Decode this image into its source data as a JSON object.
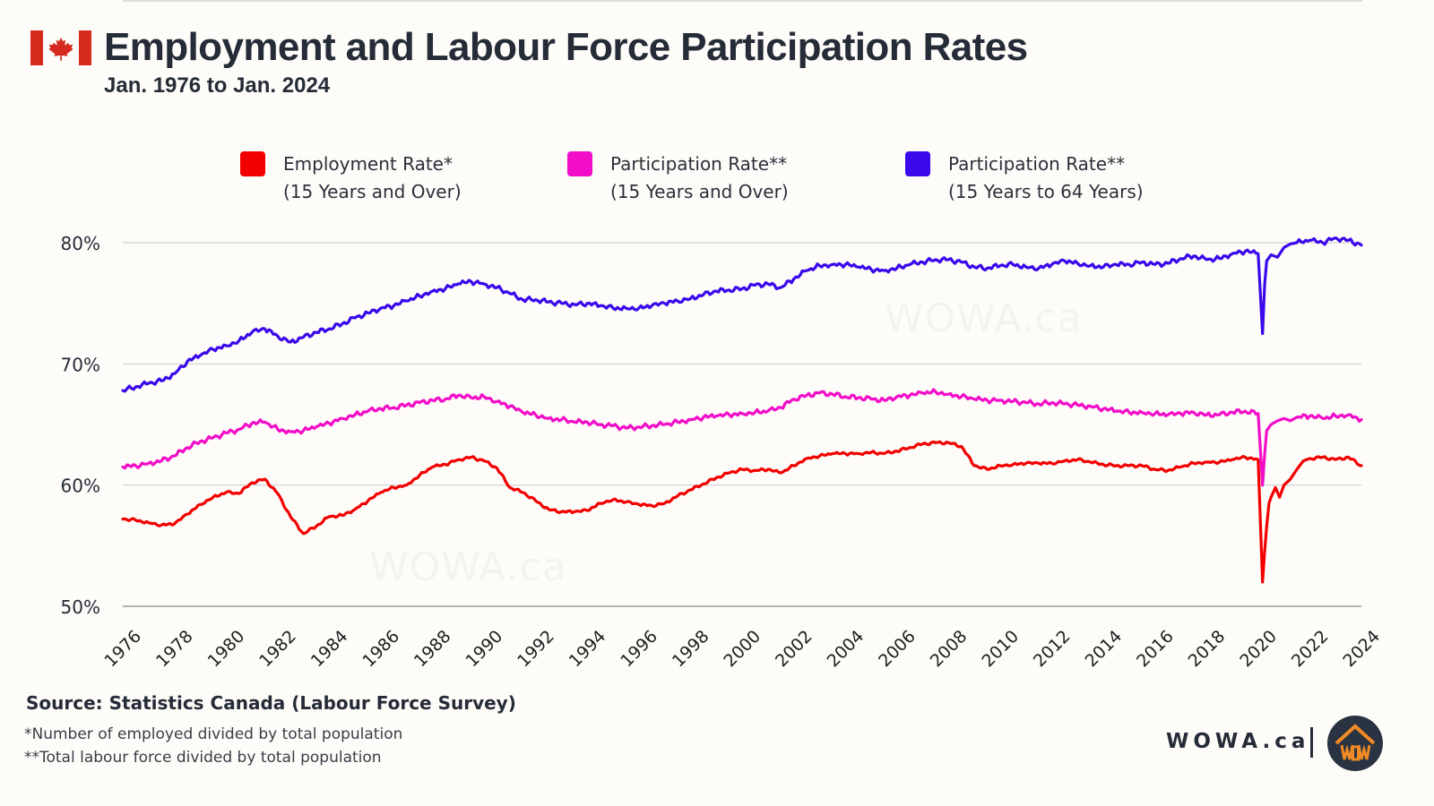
{
  "header": {
    "title": "Employment and Labour Force Participation Rates",
    "subtitle": "Jan. 1976 to Jan. 2024",
    "flag_icon": "canada-flag-icon"
  },
  "legend": [
    {
      "line1": "Employment Rate*",
      "line2": "(15 Years and Over)",
      "color": "#f20000"
    },
    {
      "line1": "Participation Rate**",
      "line2": "(15 Years and Over)",
      "color": "#f20dc8"
    },
    {
      "line1": "Participation Rate**",
      "line2": "(15 Years to 64 Years)",
      "color": "#3a08ea"
    }
  ],
  "watermark": "WOWA.ca",
  "footer": {
    "source": "Source: Statistics Canada (Labour Force Survey)",
    "note1": "*Number of employed divided by total population",
    "note2": "**Total labour force divided by total population",
    "brand": "WOWA.ca",
    "logo_icon": "wowa-house-logo-icon"
  },
  "chart_data": {
    "type": "line",
    "title": "Employment and Labour Force Participation Rates",
    "subtitle": "Jan. 1976 to Jan. 2024",
    "xlabel": "",
    "ylabel": "",
    "xlim": [
      1976,
      2024
    ],
    "ylim": [
      50,
      80
    ],
    "y_ticks": [
      50,
      60,
      70,
      80
    ],
    "y_tick_labels": [
      "50%",
      "60%",
      "70%",
      "80%"
    ],
    "x_ticks": [
      1976,
      1978,
      1980,
      1982,
      1984,
      1986,
      1988,
      1990,
      1992,
      1994,
      1996,
      1998,
      2000,
      2002,
      2004,
      2006,
      2008,
      2010,
      2012,
      2014,
      2016,
      2018,
      2020,
      2022,
      2024
    ],
    "x_tick_labels": [
      "1976",
      "1978",
      "1980",
      "1982",
      "1984",
      "1986",
      "1988",
      "1990",
      "1992",
      "1994",
      "1996",
      "1998",
      "2000",
      "2002",
      "2004",
      "2006",
      "2008",
      "2010",
      "2012",
      "2014",
      "2016",
      "2018",
      "2020",
      "2022",
      "2024"
    ],
    "grid": "horizontal",
    "legend_position": "top",
    "series": [
      {
        "name": "Employment Rate* (15 Years and Over)",
        "color": "#f20000",
        "x": [
          1976,
          1976.5,
          1977,
          1977.5,
          1978,
          1978.5,
          1979,
          1979.5,
          1980,
          1980.5,
          1981,
          1981.5,
          1982,
          1982.5,
          1983,
          1983.5,
          1984,
          1984.5,
          1985,
          1985.5,
          1986,
          1986.5,
          1987,
          1987.5,
          1988,
          1988.5,
          1989,
          1989.5,
          1990,
          1990.5,
          1991,
          1991.5,
          1992,
          1992.5,
          1993,
          1993.5,
          1994,
          1994.5,
          1995,
          1995.5,
          1996,
          1996.5,
          1997,
          1997.5,
          1998,
          1998.5,
          1999,
          1999.5,
          2000,
          2000.5,
          2001,
          2001.5,
          2002,
          2002.5,
          2003,
          2003.5,
          2004,
          2004.5,
          2005,
          2005.5,
          2006,
          2006.5,
          2007,
          2007.5,
          2008,
          2008.5,
          2009,
          2009.5,
          2010,
          2010.5,
          2011,
          2011.5,
          2012,
          2012.5,
          2013,
          2013.5,
          2014,
          2014.5,
          2015,
          2015.5,
          2016,
          2016.5,
          2017,
          2017.5,
          2018,
          2018.5,
          2019,
          2019.5,
          2020,
          2020.17,
          2020.25,
          2020.33,
          2020.42,
          2020.5,
          2020.67,
          2020.83,
          2021,
          2021.25,
          2021.5,
          2021.75,
          2022,
          2022.5,
          2023,
          2023.5,
          2024
        ],
        "values": [
          57.2,
          57.1,
          56.9,
          56.7,
          56.8,
          57.6,
          58.4,
          59.0,
          59.4,
          59.3,
          60.2,
          60.5,
          59.3,
          57.4,
          56.0,
          56.6,
          57.4,
          57.5,
          58.0,
          58.7,
          59.4,
          59.8,
          60.0,
          60.8,
          61.5,
          61.7,
          62.1,
          62.3,
          62.0,
          61.4,
          59.8,
          59.4,
          58.7,
          58.0,
          57.8,
          57.8,
          57.9,
          58.5,
          58.8,
          58.6,
          58.4,
          58.3,
          58.5,
          59.1,
          59.6,
          60.1,
          60.6,
          61.0,
          61.3,
          61.2,
          61.3,
          61.0,
          61.6,
          62.2,
          62.4,
          62.6,
          62.6,
          62.6,
          62.7,
          62.6,
          62.8,
          63.1,
          63.4,
          63.5,
          63.5,
          63.2,
          61.6,
          61.3,
          61.6,
          61.7,
          61.8,
          61.8,
          61.8,
          62.0,
          62.1,
          61.9,
          61.7,
          61.6,
          61.6,
          61.6,
          61.3,
          61.2,
          61.5,
          61.8,
          61.9,
          61.9,
          62.1,
          62.3,
          62.1,
          52.0,
          54.5,
          56.6,
          58.5,
          59.0,
          59.8,
          59.0,
          60.0,
          60.5,
          61.3,
          62.0,
          62.2,
          62.3,
          62.1,
          62.3,
          61.6
        ]
      },
      {
        "name": "Participation Rate** (15 Years and Over)",
        "color": "#f20dc8",
        "x": [
          1976,
          1976.5,
          1977,
          1977.5,
          1978,
          1978.5,
          1979,
          1979.5,
          1980,
          1980.5,
          1981,
          1981.5,
          1982,
          1982.5,
          1983,
          1983.5,
          1984,
          1984.5,
          1985,
          1985.5,
          1986,
          1986.5,
          1987,
          1987.5,
          1988,
          1988.5,
          1989,
          1989.5,
          1990,
          1990.5,
          1991,
          1991.5,
          1992,
          1992.5,
          1993,
          1993.5,
          1994,
          1994.5,
          1995,
          1995.5,
          1996,
          1996.5,
          1997,
          1997.5,
          1998,
          1998.5,
          1999,
          1999.5,
          2000,
          2000.5,
          2001,
          2001.5,
          2002,
          2002.5,
          2003,
          2003.5,
          2004,
          2004.5,
          2005,
          2005.5,
          2006,
          2006.5,
          2007,
          2007.5,
          2008,
          2008.5,
          2009,
          2009.5,
          2010,
          2010.5,
          2011,
          2011.5,
          2012,
          2012.5,
          2013,
          2013.5,
          2014,
          2014.5,
          2015,
          2015.5,
          2016,
          2016.5,
          2017,
          2017.5,
          2018,
          2018.5,
          2019,
          2019.5,
          2020,
          2020.17,
          2020.25,
          2020.33,
          2020.5,
          2020.75,
          2021,
          2021.25,
          2021.5,
          2022,
          2022.5,
          2023,
          2023.5,
          2024
        ],
        "values": [
          61.5,
          61.6,
          61.8,
          62.0,
          62.4,
          63.1,
          63.6,
          63.9,
          64.3,
          64.6,
          65.1,
          65.2,
          64.6,
          64.4,
          64.5,
          64.8,
          65.1,
          65.5,
          65.8,
          66.1,
          66.3,
          66.4,
          66.6,
          66.8,
          67.0,
          67.1,
          67.4,
          67.2,
          67.3,
          66.9,
          66.5,
          66.0,
          65.8,
          65.5,
          65.4,
          65.2,
          65.2,
          65.0,
          64.9,
          64.7,
          64.8,
          64.9,
          65.0,
          65.2,
          65.4,
          65.6,
          65.7,
          65.8,
          65.9,
          66.0,
          66.1,
          66.4,
          67.1,
          67.4,
          67.6,
          67.5,
          67.3,
          67.2,
          67.1,
          67.0,
          67.3,
          67.4,
          67.6,
          67.7,
          67.5,
          67.3,
          67.1,
          67.0,
          67.0,
          66.9,
          66.8,
          66.7,
          66.8,
          66.7,
          66.6,
          66.5,
          66.3,
          66.1,
          66.0,
          66.0,
          65.9,
          65.8,
          65.9,
          66.0,
          65.8,
          65.8,
          66.0,
          66.1,
          65.9,
          60.0,
          62.5,
          64.5,
          65.0,
          65.3,
          65.5,
          65.3,
          65.6,
          65.7,
          65.5,
          65.7,
          65.8,
          65.4
        ]
      },
      {
        "name": "Participation Rate** (15 Years to 64 Years)",
        "color": "#3a08ea",
        "x": [
          1976,
          1976.5,
          1977,
          1977.5,
          1978,
          1978.5,
          1979,
          1979.5,
          1980,
          1980.5,
          1981,
          1981.5,
          1982,
          1982.5,
          1983,
          1983.5,
          1984,
          1984.5,
          1985,
          1985.5,
          1986,
          1986.5,
          1987,
          1987.5,
          1988,
          1988.5,
          1989,
          1989.5,
          1990,
          1990.5,
          1991,
          1991.5,
          1992,
          1992.5,
          1993,
          1993.5,
          1994,
          1994.5,
          1995,
          1995.5,
          1996,
          1996.5,
          1997,
          1997.5,
          1998,
          1998.5,
          1999,
          1999.5,
          2000,
          2000.5,
          2001,
          2001.5,
          2002,
          2002.5,
          2003,
          2003.5,
          2004,
          2004.5,
          2005,
          2005.5,
          2006,
          2006.5,
          2007,
          2007.5,
          2008,
          2008.5,
          2009,
          2009.5,
          2010,
          2010.5,
          2011,
          2011.5,
          2012,
          2012.5,
          2013,
          2013.5,
          2014,
          2014.5,
          2015,
          2015.5,
          2016,
          2016.5,
          2017,
          2017.5,
          2018,
          2018.5,
          2019,
          2019.5,
          2020,
          2020.17,
          2020.25,
          2020.33,
          2020.5,
          2020.75,
          2021,
          2021.25,
          2021.5,
          2022,
          2022.5,
          2023,
          2023.5,
          2024
        ],
        "values": [
          67.8,
          68.1,
          68.4,
          68.6,
          69.2,
          70.2,
          70.7,
          71.2,
          71.5,
          71.9,
          72.6,
          72.9,
          72.3,
          71.8,
          72.2,
          72.6,
          72.9,
          73.3,
          73.8,
          74.2,
          74.6,
          74.8,
          75.2,
          75.6,
          76.0,
          76.2,
          76.6,
          76.8,
          76.6,
          76.3,
          75.8,
          75.3,
          75.3,
          75.1,
          75.0,
          74.9,
          75.0,
          74.8,
          74.6,
          74.6,
          74.6,
          74.8,
          75.0,
          75.2,
          75.4,
          75.7,
          76.0,
          76.1,
          76.2,
          76.5,
          76.6,
          76.3,
          77.0,
          77.7,
          78.1,
          78.2,
          78.2,
          78.0,
          77.8,
          77.7,
          77.9,
          78.2,
          78.4,
          78.6,
          78.6,
          78.4,
          78.0,
          77.9,
          78.1,
          78.2,
          78.0,
          77.9,
          78.2,
          78.5,
          78.3,
          78.1,
          78.0,
          78.2,
          78.2,
          78.4,
          78.2,
          78.3,
          78.7,
          78.9,
          78.6,
          78.7,
          79.1,
          79.3,
          79.1,
          72.5,
          76.5,
          78.5,
          79.0,
          78.8,
          79.6,
          79.9,
          80.0,
          80.2,
          80.0,
          80.4,
          80.2,
          79.8
        ]
      }
    ]
  }
}
